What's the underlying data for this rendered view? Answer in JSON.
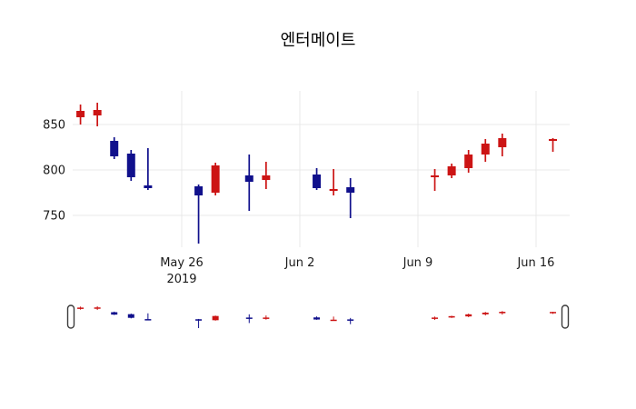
{
  "title": "엔터메이트",
  "colors": {
    "up": "#cc1414",
    "down": "#10108c",
    "grid": "#e9e9e9",
    "text": "#1a1a1a",
    "handle": "#3c3c3c",
    "background": "#ffffff"
  },
  "chart_data": {
    "type": "candlestick",
    "title": "엔터메이트",
    "legend": "none",
    "grid": "on",
    "y_axis": {
      "ticks": [
        850,
        800,
        750
      ],
      "ylim": [
        715,
        890
      ]
    },
    "x_axis": {
      "origin_date": "2019-05-26",
      "ticks": [
        {
          "label": "May 26",
          "sublabel": "2019",
          "date": "2019-05-26"
        },
        {
          "label": "Jun 2",
          "date": "2019-06-02"
        },
        {
          "label": "Jun 9",
          "date": "2019-06-09"
        },
        {
          "label": "Jun 16",
          "date": "2019-06-16"
        }
      ]
    },
    "series": [
      {
        "date": "2019-05-20",
        "open": 858,
        "high": 872,
        "low": 850,
        "close": 865
      },
      {
        "date": "2019-05-21",
        "open": 860,
        "high": 874,
        "low": 848,
        "close": 866
      },
      {
        "date": "2019-05-22",
        "open": 832,
        "high": 836,
        "low": 812,
        "close": 815
      },
      {
        "date": "2019-05-23",
        "open": 818,
        "high": 822,
        "low": 788,
        "close": 792
      },
      {
        "date": "2019-05-24",
        "open": 783,
        "high": 824,
        "low": 778,
        "close": 780
      },
      {
        "date": "2019-05-27",
        "open": 782,
        "high": 784,
        "low": 719,
        "close": 772
      },
      {
        "date": "2019-05-28",
        "open": 775,
        "high": 808,
        "low": 772,
        "close": 805
      },
      {
        "date": "2019-05-30",
        "open": 794,
        "high": 817,
        "low": 755,
        "close": 787
      },
      {
        "date": "2019-05-31",
        "open": 789,
        "high": 809,
        "low": 779,
        "close": 794
      },
      {
        "date": "2019-06-03",
        "open": 795,
        "high": 802,
        "low": 778,
        "close": 780
      },
      {
        "date": "2019-06-04",
        "open": 777,
        "high": 801,
        "low": 772,
        "close": 779
      },
      {
        "date": "2019-06-05",
        "open": 781,
        "high": 791,
        "low": 747,
        "close": 775
      },
      {
        "date": "2019-06-10",
        "open": 792,
        "high": 801,
        "low": 777,
        "close": 794
      },
      {
        "date": "2019-06-11",
        "open": 794,
        "high": 807,
        "low": 791,
        "close": 804
      },
      {
        "date": "2019-06-12",
        "open": 802,
        "high": 822,
        "low": 797,
        "close": 817
      },
      {
        "date": "2019-06-13",
        "open": 817,
        "high": 834,
        "low": 809,
        "close": 829
      },
      {
        "date": "2019-06-14",
        "open": 825,
        "high": 840,
        "low": 815,
        "close": 835
      },
      {
        "date": "2019-06-17",
        "open": 833,
        "high": 835,
        "low": 820,
        "close": 834
      }
    ],
    "navigator": {
      "visible": true,
      "left_handle": true,
      "right_handle": true
    }
  }
}
